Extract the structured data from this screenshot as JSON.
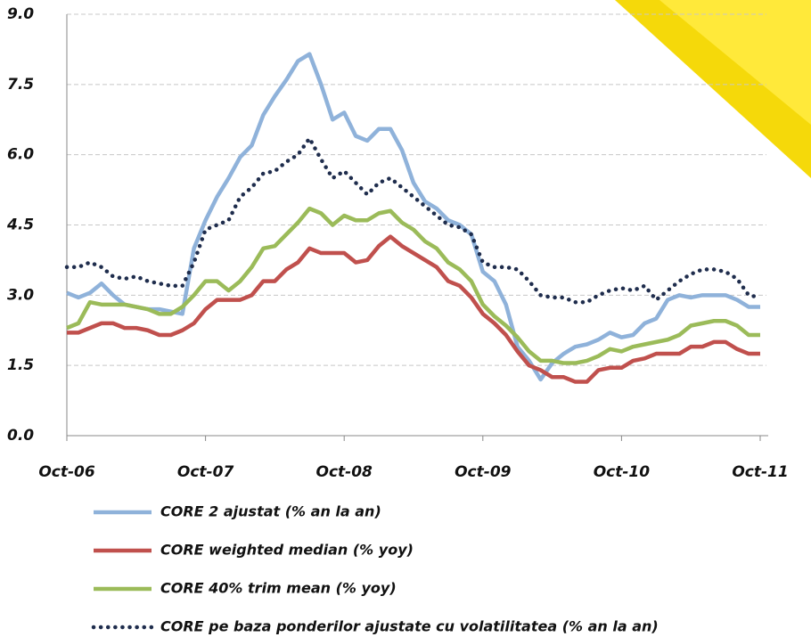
{
  "chart_data": {
    "type": "line",
    "categories": [
      "Oct-06",
      null,
      null,
      null,
      null,
      null,
      null,
      null,
      null,
      null,
      null,
      null,
      "Oct-07",
      null,
      null,
      null,
      null,
      null,
      null,
      null,
      null,
      null,
      null,
      null,
      "Oct-08",
      null,
      null,
      null,
      null,
      null,
      null,
      null,
      null,
      null,
      null,
      null,
      "Oct-09",
      null,
      null,
      null,
      null,
      null,
      null,
      null,
      null,
      null,
      null,
      null,
      "Oct-10",
      null,
      null,
      null,
      null,
      null,
      null,
      null,
      null,
      null,
      null,
      null,
      "Oct-11"
    ],
    "series": [
      {
        "name": "CORE 2 ajustat (% an la an)",
        "color": "#8fb2da",
        "style": "solid",
        "values": [
          3.05,
          2.95,
          3.05,
          3.25,
          3.0,
          2.8,
          2.75,
          2.7,
          2.7,
          2.65,
          2.6,
          4.0,
          4.6,
          5.1,
          5.5,
          5.95,
          6.2,
          6.85,
          7.25,
          7.6,
          8.0,
          8.15,
          7.5,
          6.75,
          6.9,
          6.4,
          6.3,
          6.55,
          6.55,
          6.1,
          5.4,
          5.0,
          4.85,
          4.6,
          4.5,
          4.3,
          3.5,
          3.3,
          2.8,
          1.9,
          1.6,
          1.2,
          1.55,
          1.75,
          1.9,
          1.95,
          2.05,
          2.2,
          2.1,
          2.15,
          2.4,
          2.5,
          2.9,
          3.0,
          2.95,
          3.0,
          3.0,
          3.0,
          2.9,
          2.75,
          2.75
        ]
      },
      {
        "name": "CORE weighted median (% yoy)",
        "color": "#c0504d",
        "style": "solid",
        "values": [
          2.2,
          2.2,
          2.3,
          2.4,
          2.4,
          2.3,
          2.3,
          2.25,
          2.15,
          2.15,
          2.25,
          2.4,
          2.7,
          2.9,
          2.9,
          2.9,
          3.0,
          3.3,
          3.3,
          3.55,
          3.7,
          4.0,
          3.9,
          3.9,
          3.9,
          3.7,
          3.75,
          4.05,
          4.25,
          4.05,
          3.9,
          3.75,
          3.6,
          3.3,
          3.2,
          2.95,
          2.6,
          2.4,
          2.15,
          1.8,
          1.5,
          1.4,
          1.25,
          1.25,
          1.15,
          1.15,
          1.4,
          1.45,
          1.45,
          1.6,
          1.65,
          1.75,
          1.75,
          1.75,
          1.9,
          1.9,
          2.0,
          2.0,
          1.85,
          1.75,
          1.75
        ]
      },
      {
        "name": "CORE 40% trim mean (% yoy)",
        "color": "#9bbb59",
        "style": "solid",
        "values": [
          2.3,
          2.4,
          2.85,
          2.8,
          2.8,
          2.8,
          2.75,
          2.7,
          2.6,
          2.6,
          2.75,
          3.0,
          3.3,
          3.3,
          3.1,
          3.3,
          3.6,
          4.0,
          4.05,
          4.3,
          4.55,
          4.85,
          4.75,
          4.5,
          4.7,
          4.6,
          4.6,
          4.75,
          4.8,
          4.55,
          4.4,
          4.15,
          4.0,
          3.7,
          3.55,
          3.3,
          2.8,
          2.55,
          2.35,
          2.1,
          1.8,
          1.6,
          1.6,
          1.55,
          1.55,
          1.6,
          1.7,
          1.85,
          1.8,
          1.9,
          1.95,
          2.0,
          2.05,
          2.15,
          2.35,
          2.4,
          2.45,
          2.45,
          2.35,
          2.15,
          2.15
        ]
      },
      {
        "name": "CORE pe baza ponderilor ajustate cu volatilitatea (% an la an)",
        "color": "#1f2d4d",
        "style": "dotted",
        "values": [
          3.6,
          3.6,
          3.7,
          3.6,
          3.4,
          3.35,
          3.4,
          3.3,
          3.25,
          3.2,
          3.2,
          3.7,
          4.4,
          4.5,
          4.6,
          5.1,
          5.3,
          5.6,
          5.65,
          5.85,
          6.0,
          6.35,
          5.9,
          5.5,
          5.65,
          5.4,
          5.15,
          5.4,
          5.5,
          5.3,
          5.1,
          4.9,
          4.7,
          4.5,
          4.45,
          4.3,
          3.7,
          3.6,
          3.6,
          3.55,
          3.3,
          3.0,
          2.95,
          2.95,
          2.85,
          2.85,
          3.0,
          3.1,
          3.15,
          3.1,
          3.2,
          2.9,
          3.1,
          3.3,
          3.45,
          3.55,
          3.55,
          3.5,
          3.35,
          3.0,
          2.95
        ]
      }
    ],
    "ylim": [
      0,
      9
    ],
    "yticks": [
      {
        "value": 0,
        "label": "0.0"
      },
      1.5,
      {
        "value": 3,
        "label": "3.0"
      },
      4.5,
      {
        "value": 6,
        "label": "6.0"
      },
      7.5,
      {
        "value": 9,
        "label": "9.0"
      }
    ],
    "grid": true
  }
}
